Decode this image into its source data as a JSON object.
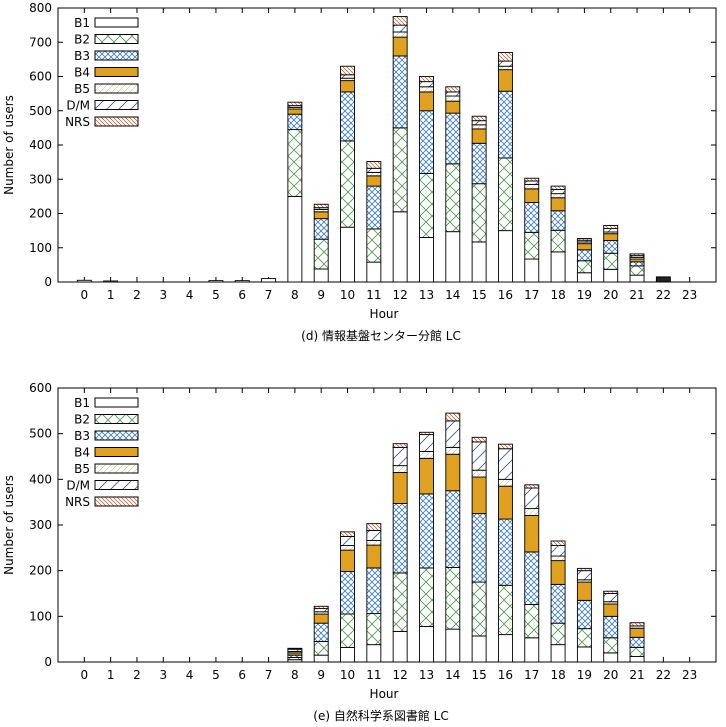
{
  "chart_data": [
    {
      "type": "bar",
      "stacked": true,
      "title": "(d)  情報基盤センター分館 LC",
      "xlabel": "Hour",
      "ylabel": "Number of users",
      "ylim": [
        0,
        800
      ],
      "yticks": [
        0,
        100,
        200,
        300,
        400,
        500,
        600,
        700,
        800
      ],
      "legend": "top-left",
      "categories": [
        "0",
        "1",
        "2",
        "3",
        "4",
        "5",
        "6",
        "7",
        "8",
        "9",
        "10",
        "11",
        "12",
        "13",
        "14",
        "15",
        "16",
        "17",
        "18",
        "19",
        "20",
        "21",
        "22",
        "23"
      ],
      "series": [
        {
          "name": "B1",
          "values": [
            5,
            3,
            0,
            0,
            0,
            4,
            4,
            10,
            250,
            38,
            160,
            58,
            205,
            130,
            147,
            117,
            150,
            67,
            88,
            27,
            37,
            20,
            15,
            0
          ]
        },
        {
          "name": "B2",
          "values": [
            0,
            0,
            0,
            0,
            0,
            0,
            0,
            0,
            195,
            87,
            252,
            97,
            245,
            187,
            198,
            170,
            212,
            78,
            63,
            35,
            47,
            27,
            0,
            0
          ]
        },
        {
          "name": "B3",
          "values": [
            0,
            0,
            0,
            0,
            0,
            0,
            0,
            0,
            45,
            60,
            143,
            125,
            210,
            183,
            148,
            118,
            195,
            87,
            57,
            32,
            37,
            12,
            0,
            0
          ]
        },
        {
          "name": "B4",
          "values": [
            0,
            0,
            0,
            0,
            0,
            0,
            0,
            0,
            15,
            20,
            33,
            30,
            55,
            55,
            35,
            42,
            63,
            40,
            38,
            18,
            20,
            8,
            0,
            0
          ]
        },
        {
          "name": "B5",
          "values": [
            0,
            0,
            0,
            0,
            0,
            0,
            0,
            0,
            5,
            7,
            7,
            10,
            15,
            15,
            15,
            12,
            10,
            13,
            12,
            5,
            5,
            5,
            0,
            0
          ]
        },
        {
          "name": "D/M",
          "values": [
            0,
            0,
            0,
            0,
            0,
            0,
            0,
            0,
            5,
            5,
            10,
            12,
            20,
            15,
            12,
            12,
            15,
            10,
            12,
            5,
            10,
            5,
            0,
            0
          ]
        },
        {
          "name": "NRS",
          "values": [
            0,
            0,
            0,
            0,
            0,
            0,
            0,
            0,
            10,
            10,
            25,
            20,
            25,
            15,
            15,
            13,
            25,
            8,
            10,
            5,
            9,
            5,
            0,
            0
          ]
        }
      ]
    },
    {
      "type": "bar",
      "stacked": true,
      "title": "(e)  自然科学系図書館 LC",
      "xlabel": "Hour",
      "ylabel": "Number of users",
      "ylim": [
        0,
        600
      ],
      "yticks": [
        0,
        100,
        200,
        300,
        400,
        500,
        600
      ],
      "legend": "top-left",
      "categories": [
        "0",
        "1",
        "2",
        "3",
        "4",
        "5",
        "6",
        "7",
        "8",
        "9",
        "10",
        "11",
        "12",
        "13",
        "14",
        "15",
        "16",
        "17",
        "18",
        "19",
        "20",
        "21",
        "22",
        "23"
      ],
      "series": [
        {
          "name": "B1",
          "values": [
            0,
            0,
            0,
            0,
            0,
            0,
            0,
            0,
            5,
            15,
            32,
            38,
            67,
            78,
            72,
            57,
            60,
            53,
            38,
            33,
            20,
            12,
            0,
            0
          ]
        },
        {
          "name": "B2",
          "values": [
            0,
            0,
            0,
            0,
            0,
            0,
            0,
            0,
            5,
            30,
            73,
            68,
            128,
            128,
            135,
            118,
            108,
            73,
            47,
            40,
            33,
            20,
            0,
            0
          ]
        },
        {
          "name": "B3",
          "values": [
            0,
            0,
            0,
            0,
            0,
            0,
            0,
            0,
            5,
            40,
            93,
            100,
            152,
            162,
            168,
            150,
            145,
            115,
            85,
            62,
            47,
            22,
            0,
            0
          ]
        },
        {
          "name": "B4",
          "values": [
            0,
            0,
            0,
            0,
            0,
            0,
            0,
            0,
            5,
            20,
            47,
            50,
            68,
            78,
            80,
            80,
            72,
            80,
            52,
            40,
            27,
            20,
            0,
            0
          ]
        },
        {
          "name": "B5",
          "values": [
            0,
            0,
            0,
            0,
            0,
            0,
            0,
            0,
            3,
            5,
            10,
            10,
            15,
            15,
            15,
            15,
            15,
            15,
            10,
            5,
            5,
            5,
            0,
            0
          ]
        },
        {
          "name": "D/M",
          "values": [
            0,
            0,
            0,
            0,
            0,
            0,
            0,
            0,
            5,
            7,
            20,
            22,
            40,
            37,
            58,
            62,
            67,
            45,
            23,
            20,
            18,
            0,
            0,
            0
          ]
        },
        {
          "name": "NRS",
          "values": [
            0,
            0,
            0,
            0,
            0,
            0,
            0,
            0,
            2,
            5,
            10,
            15,
            8,
            5,
            17,
            10,
            10,
            7,
            10,
            5,
            5,
            7,
            0,
            0
          ]
        }
      ]
    }
  ],
  "colors": {
    "B1": "#ffffff",
    "B2": "#4a9a4a",
    "B3": "#3a7abf",
    "B4": "#e0a020",
    "B5": "#b8b040",
    "D/M": "#3a60b0",
    "NRS": "#d05020"
  }
}
